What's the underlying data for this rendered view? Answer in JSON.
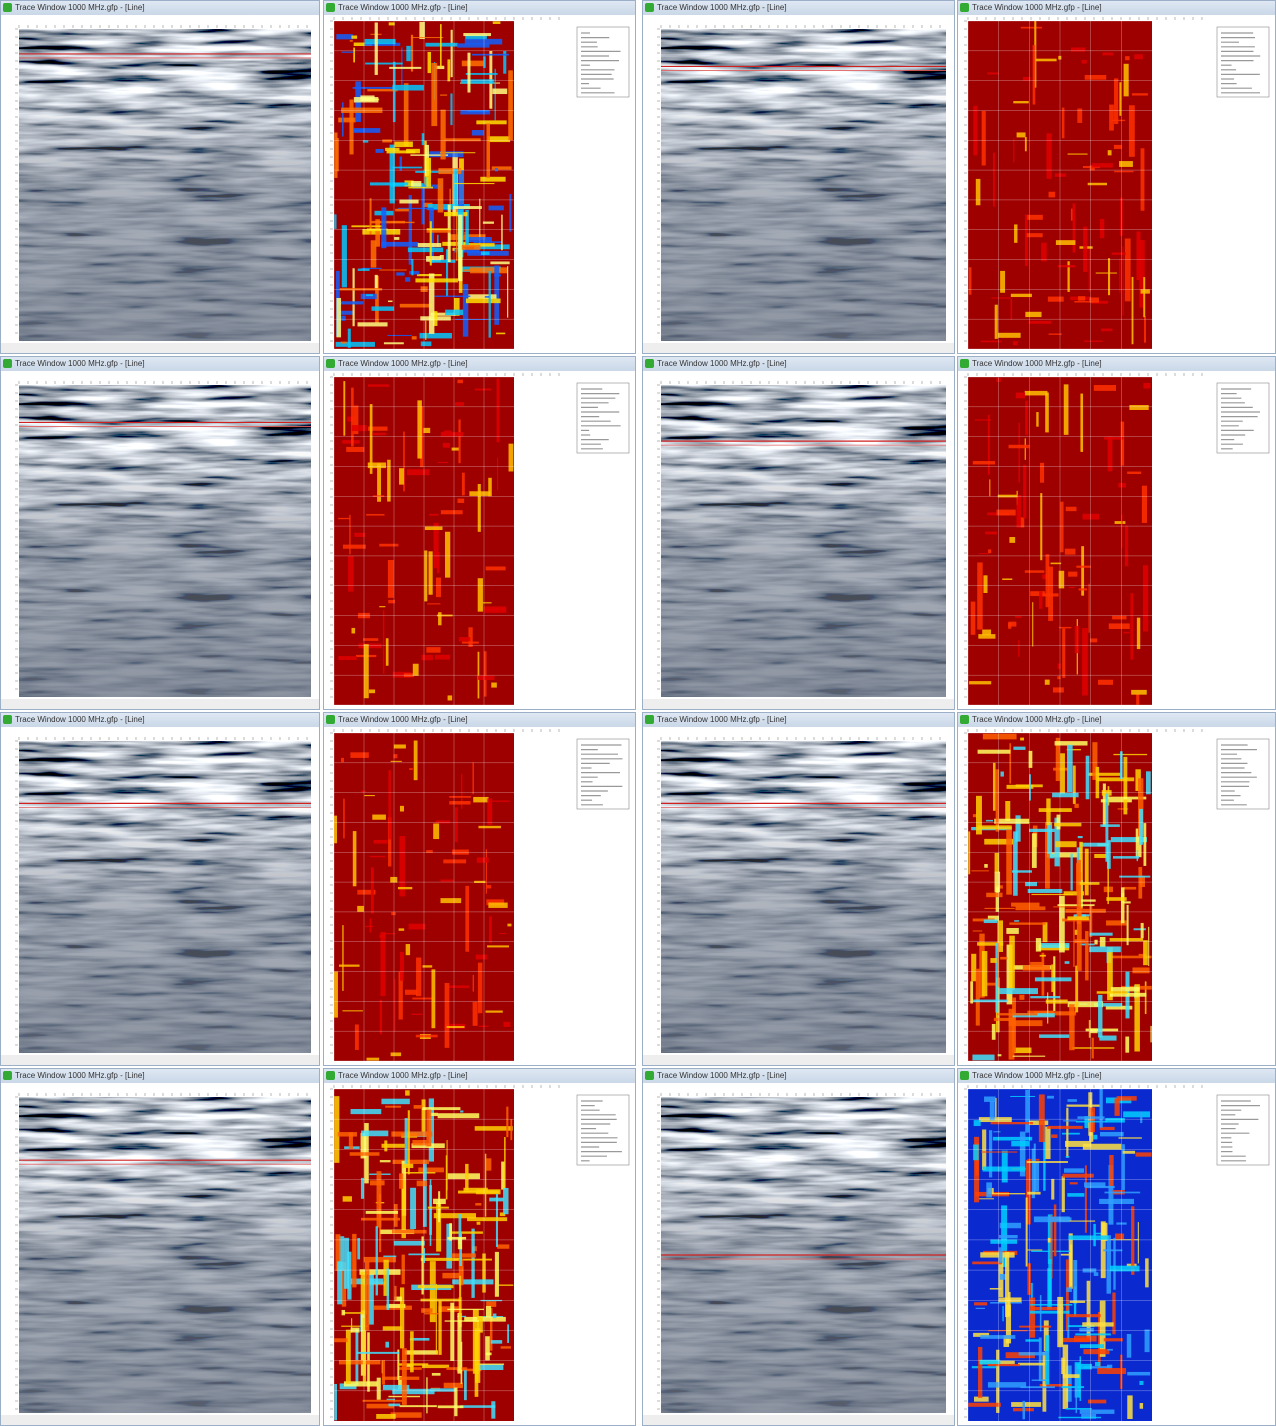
{
  "windows": [
    {
      "title": "Trace Window 1000 MHz.gfp - [Line]",
      "palette": "mixed"
    },
    {
      "title": "Trace Window 1000 MHz.gfp - [Line]",
      "palette": "red"
    },
    {
      "title": "Trace Window 1000 MHz.gfp - [Line]",
      "palette": "red"
    },
    {
      "title": "Trace Window 1000 MHz.gfp - [Line]",
      "palette": "red"
    },
    {
      "title": "Trace Window 1000 MHz.gfp - [Line]",
      "palette": "red"
    },
    {
      "title": "Trace Window 1000 MHz.gfp - [Line]",
      "palette": "redmixed"
    },
    {
      "title": "Trace Window 1000 MHz.gfp - [Line]",
      "palette": "redmixed"
    },
    {
      "title": "Trace Window 1000 MHz.gfp - [Line]",
      "palette": "blue"
    }
  ]
}
